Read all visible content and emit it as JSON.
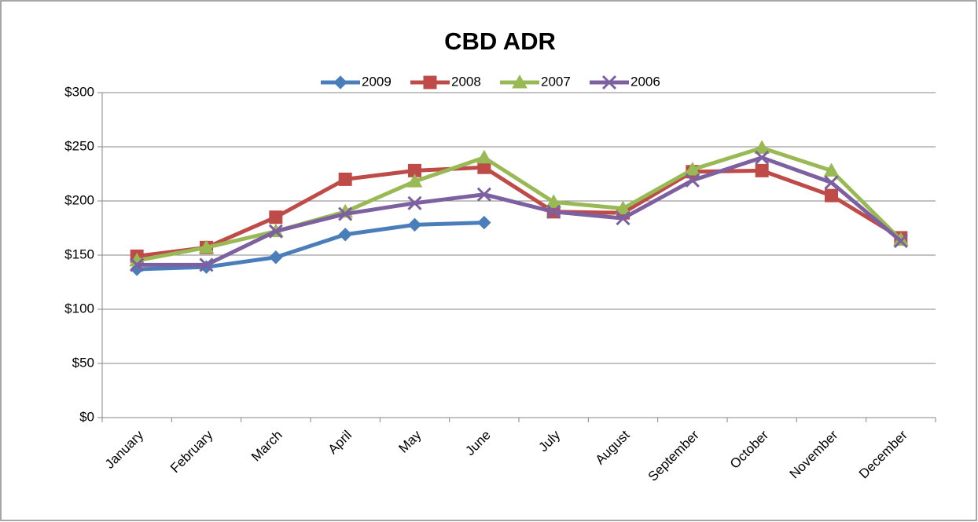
{
  "chart_data": {
    "type": "line",
    "title": "CBD ADR",
    "categories": [
      "January",
      "February",
      "March",
      "April",
      "May",
      "June",
      "July",
      "August",
      "September",
      "October",
      "November",
      "December"
    ],
    "series": [
      {
        "name": "2009",
        "color": "#4a7ebb",
        "marker": "diamond",
        "values": [
          137,
          139,
          148,
          169,
          178,
          180,
          null,
          null,
          null,
          null,
          null,
          null
        ]
      },
      {
        "name": "2008",
        "color": "#be4b48",
        "marker": "square",
        "values": [
          149,
          157,
          185,
          220,
          228,
          231,
          190,
          189,
          227,
          228,
          205,
          166
        ]
      },
      {
        "name": "2007",
        "color": "#98b954",
        "marker": "triangle",
        "values": [
          145,
          157,
          172,
          190,
          218,
          240,
          199,
          193,
          229,
          249,
          228,
          164
        ]
      },
      {
        "name": "2006",
        "color": "#7d60a0",
        "marker": "x",
        "values": [
          141,
          141,
          172,
          188,
          198,
          206,
          190,
          184,
          219,
          240,
          217,
          163
        ]
      }
    ],
    "ylim": [
      0,
      300
    ],
    "yticks": [
      {
        "value": 0,
        "label": "$0"
      },
      {
        "value": 50,
        "label": "$50"
      },
      {
        "value": 100,
        "label": "$100"
      },
      {
        "value": 150,
        "label": "$150"
      },
      {
        "value": 200,
        "label": "$200"
      },
      {
        "value": 250,
        "label": "$250"
      },
      {
        "value": 300,
        "label": "$300"
      }
    ],
    "grid": true,
    "legend": "top"
  }
}
